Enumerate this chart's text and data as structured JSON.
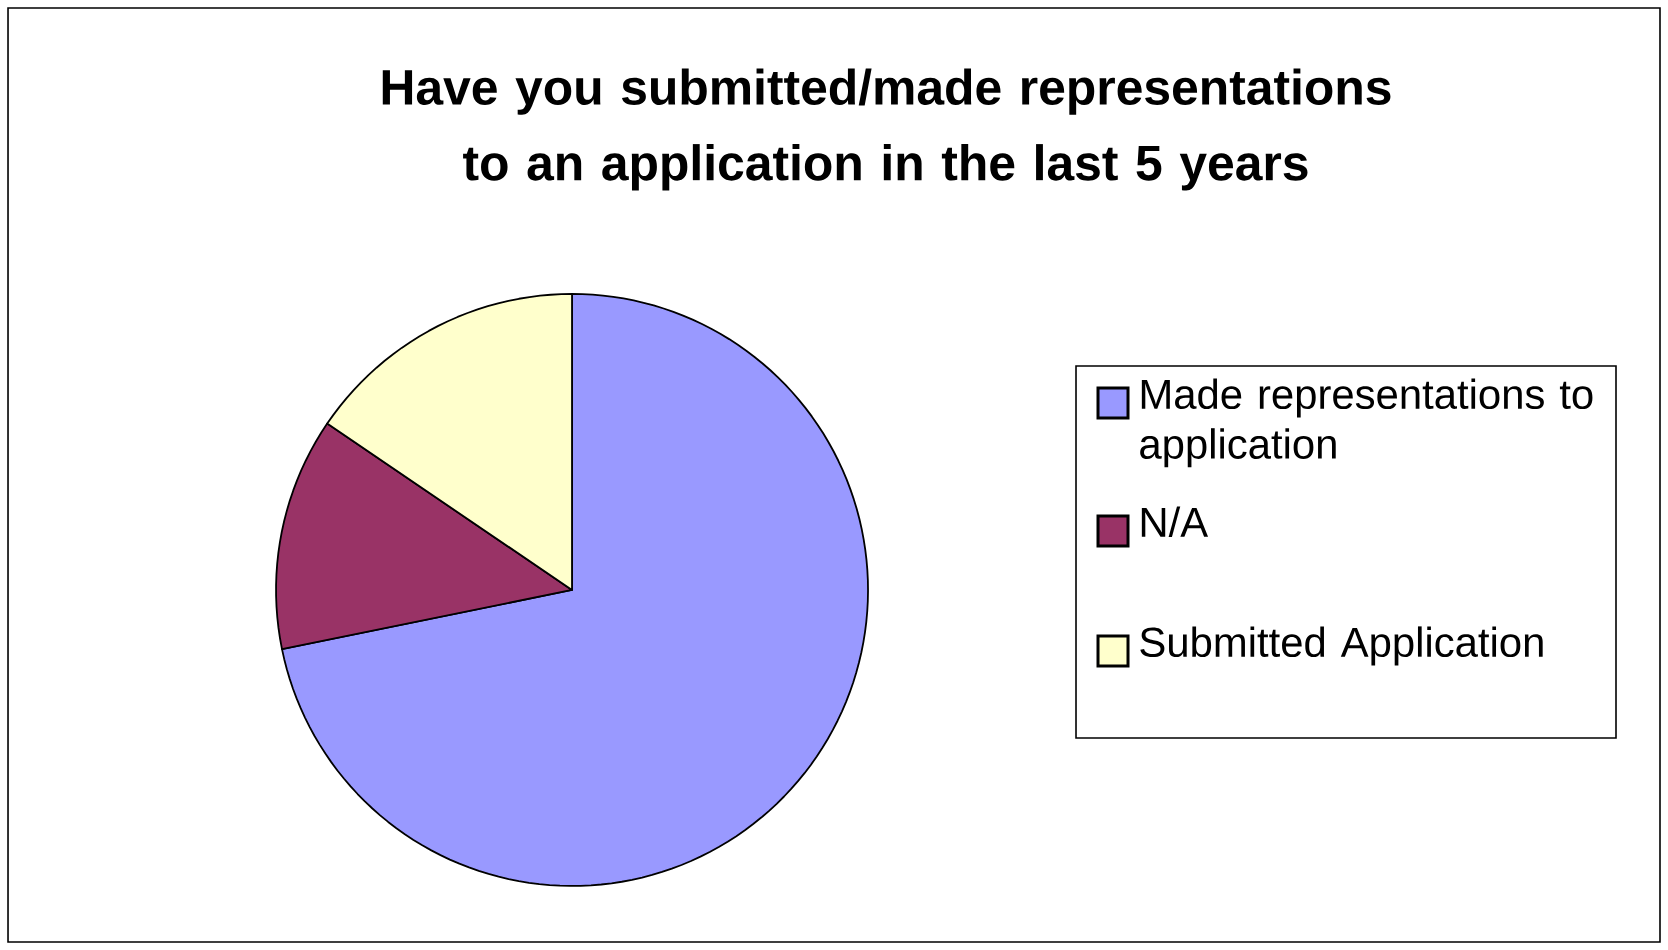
{
  "chart_data": {
    "type": "pie",
    "title": "Have you submitted/made representations to an application in the last 5 years",
    "categories": [
      "Made representations to application",
      "N/A",
      "Submitted Application"
    ],
    "values": [
      71.8,
      12.7,
      15.5
    ],
    "colors": [
      "#9999ff",
      "#993366",
      "#ffffcc"
    ],
    "legend": "right"
  }
}
